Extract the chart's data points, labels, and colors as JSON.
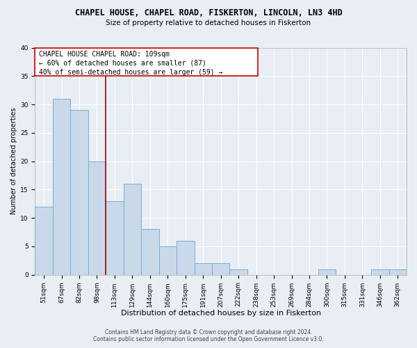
{
  "title": "CHAPEL HOUSE, CHAPEL ROAD, FISKERTON, LINCOLN, LN3 4HD",
  "subtitle": "Size of property relative to detached houses in Fiskerton",
  "xlabel": "Distribution of detached houses by size in Fiskerton",
  "ylabel": "Number of detached properties",
  "bin_labels": [
    "51sqm",
    "67sqm",
    "82sqm",
    "98sqm",
    "113sqm",
    "129sqm",
    "144sqm",
    "160sqm",
    "175sqm",
    "191sqm",
    "207sqm",
    "222sqm",
    "238sqm",
    "253sqm",
    "269sqm",
    "284sqm",
    "300sqm",
    "315sqm",
    "331sqm",
    "346sqm",
    "362sqm"
  ],
  "bar_values": [
    12,
    31,
    29,
    20,
    13,
    16,
    8,
    5,
    6,
    2,
    2,
    1,
    0,
    0,
    0,
    0,
    1,
    0,
    0,
    1,
    1
  ],
  "bar_color": "#c9d9ea",
  "bar_edgecolor": "#7badd4",
  "bar_linewidth": 0.7,
  "vline_x": 3.5,
  "vline_color": "#aa0000",
  "vline_linewidth": 1.2,
  "ylim": [
    0,
    40
  ],
  "yticks": [
    0,
    5,
    10,
    15,
    20,
    25,
    30,
    35,
    40
  ],
  "annotation_title": "CHAPEL HOUSE CHAPEL ROAD: 109sqm",
  "annotation_line1": "← 60% of detached houses are smaller (87)",
  "annotation_line2": "40% of semi-detached houses are larger (59) →",
  "annotation_box_facecolor": "#ffffff",
  "annotation_box_edgecolor": "#cc0000",
  "footer_line1": "Contains HM Land Registry data © Crown copyright and database right 2024.",
  "footer_line2": "Contains public sector information licensed under the Open Government Licence v3.0.",
  "bg_color": "#e8eef4",
  "grid_color": "#ffffff",
  "title_fontsize": 8.5,
  "subtitle_fontsize": 7.5,
  "xlabel_fontsize": 8,
  "ylabel_fontsize": 7,
  "tick_fontsize": 6.5,
  "annotation_fontsize": 7,
  "footer_fontsize": 5.5
}
